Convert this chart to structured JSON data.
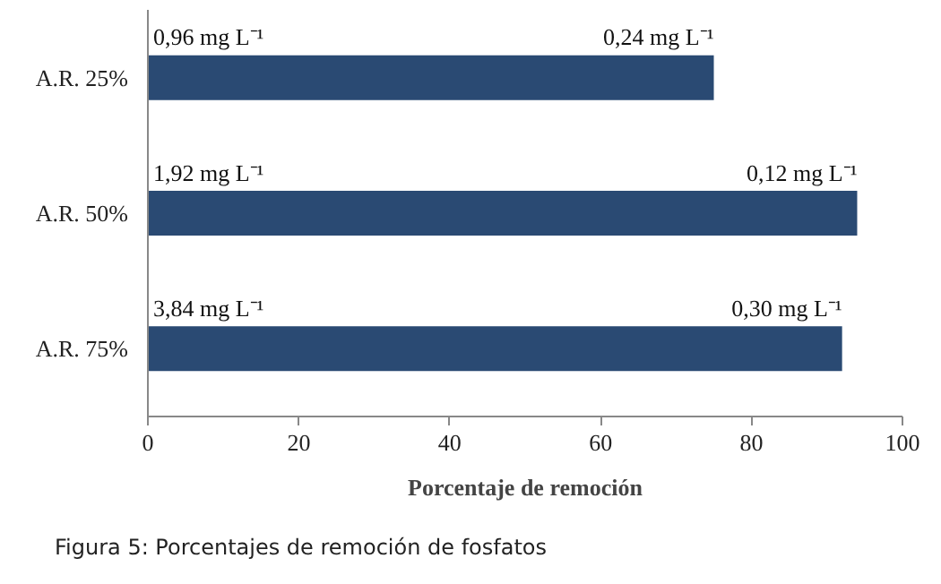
{
  "chart_data": {
    "type": "bar",
    "orientation": "horizontal",
    "categories": [
      "A.R. 25%",
      "A.R. 50%",
      "A.R. 75%"
    ],
    "values": [
      75,
      94,
      92
    ],
    "color": "#2a4a73",
    "xlim": [
      0,
      100
    ],
    "xticks": [
      0,
      20,
      40,
      60,
      80,
      100
    ],
    "xlabel": "Porcentaje de remoción",
    "grid": false,
    "annotations": [
      {
        "text": "0,96 mg L⁻¹",
        "x": 0,
        "y": "A.R. 25%"
      },
      {
        "text": "0,24 mg L⁻¹",
        "x": 75,
        "y": "A.R. 25%"
      },
      {
        "text": "1,92 mg L⁻¹",
        "x": 0,
        "y": "A.R. 50%"
      },
      {
        "text": "0,12 mg L⁻¹",
        "x": 94,
        "y": "A.R. 50%"
      },
      {
        "text": "3,84 mg L⁻¹",
        "x": 0,
        "y": "A.R. 75%"
      },
      {
        "text": "0,30 mg L⁻¹",
        "x": 92,
        "y": "A.R. 75%"
      },
      "Figura 5: Porcentajes de remoción de fosfatos"
    ]
  }
}
